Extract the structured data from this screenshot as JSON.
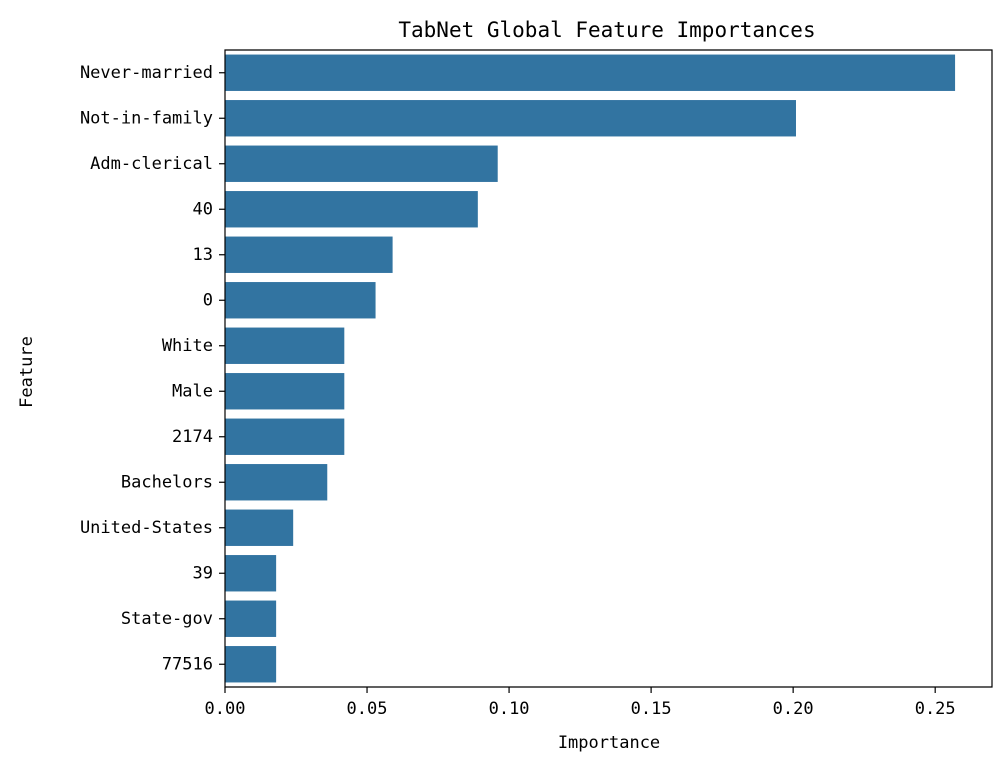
{
  "chart_data": {
    "type": "bar",
    "orientation": "horizontal",
    "title": "TabNet Global Feature Importances",
    "xlabel": "Importance",
    "ylabel": "Feature",
    "categories": [
      "Never-married",
      "Not-in-family",
      "Adm-clerical",
      "40",
      "13",
      "0",
      "White",
      "Male",
      "2174",
      "Bachelors",
      "United-States",
      "39",
      "State-gov",
      "77516"
    ],
    "values": [
      0.257,
      0.201,
      0.096,
      0.089,
      0.059,
      0.053,
      0.042,
      0.042,
      0.042,
      0.036,
      0.024,
      0.018,
      0.018,
      0.018
    ],
    "xticks": [
      0.0,
      0.05,
      0.1,
      0.15,
      0.2,
      0.25
    ],
    "xtick_labels": [
      "0.00",
      "0.05",
      "0.10",
      "0.15",
      "0.20",
      "0.25"
    ],
    "xlim": [
      0,
      0.27
    ],
    "grid": false,
    "bar_color": "#3274a1"
  }
}
